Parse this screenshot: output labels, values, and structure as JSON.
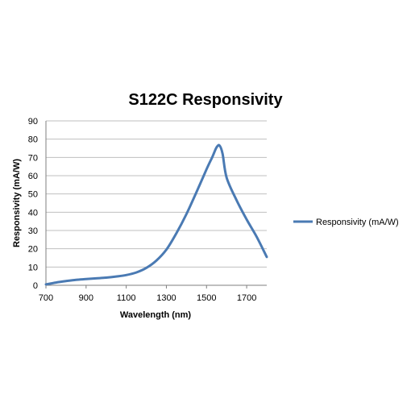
{
  "chart_data": {
    "type": "line",
    "title": "S122C Responsivity",
    "xlabel": "Wavelength (nm)",
    "ylabel": "Responsivity (mA/W)",
    "xlim": [
      700,
      1800
    ],
    "ylim": [
      0,
      90
    ],
    "x_ticks": [
      700,
      900,
      1100,
      1300,
      1500,
      1700
    ],
    "y_ticks": [
      0,
      10,
      20,
      30,
      40,
      50,
      60,
      70,
      80,
      90
    ],
    "grid": true,
    "legend_position": "right",
    "series": [
      {
        "name": "Responsivity (mA/W)",
        "color": "#4a7ab3",
        "x": [
          700,
          750,
          800,
          850,
          900,
          950,
          1000,
          1050,
          1100,
          1150,
          1200,
          1250,
          1300,
          1350,
          1400,
          1450,
          1500,
          1530,
          1550,
          1565,
          1580,
          1600,
          1650,
          1700,
          1750,
          1800
        ],
        "y": [
          0.5,
          1.5,
          2.3,
          3.0,
          3.4,
          3.8,
          4.2,
          4.8,
          5.6,
          7.0,
          9.5,
          13.5,
          19.5,
          28.5,
          39.0,
          51.0,
          63.5,
          70.5,
          75.5,
          76.5,
          72.0,
          59.0,
          46.5,
          36.0,
          26.5,
          15.5
        ]
      }
    ]
  }
}
